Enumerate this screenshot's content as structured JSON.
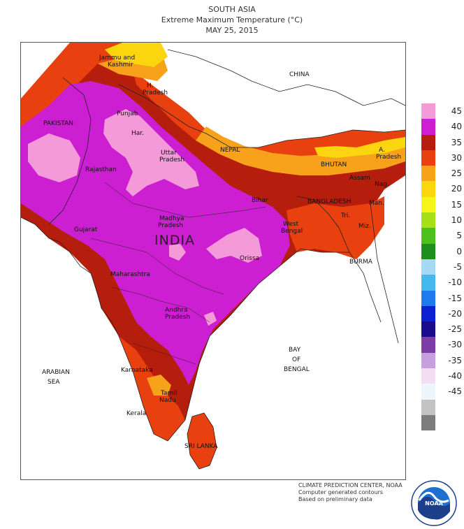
{
  "title": {
    "line1": "SOUTH ASIA",
    "line2": "Extreme Maximum Temperature (°C)",
    "line3": "MAY 25, 2015"
  },
  "map_labels": {
    "jammu": "Jammu and",
    "kashmir": "Kashmir",
    "china": "CHINA",
    "hp1": "H.",
    "hp2": "Pradesh",
    "pakistan": "PAKISTAN",
    "punjab": "Punjab",
    "haryana": "Har.",
    "up1": "Uttar",
    "up2": "Pradesh",
    "nepal": "NEPAL",
    "bhutan": "BHUTAN",
    "ap1": "A.",
    "ap2": "Pradesh",
    "assam": "Assam",
    "nagaland": "Nag.",
    "rajasthan": "Rajasthan",
    "bihar": "Bihar",
    "bangladesh": "BANGLADESH",
    "manipur": "Man.",
    "tripura": "Tri.",
    "mizoram": "Miz.",
    "mp1": "Madhya",
    "mp2": "Pradesh",
    "gujarat": "Gujarat",
    "wb1": "West",
    "wb2": "Bengal",
    "india": "INDIA",
    "orissa": "Orissa",
    "burma": "BURMA",
    "maharashtra": "Maharashtra",
    "andhra1": "Andhra",
    "andhra2": "Pradesh",
    "bay1": "BAY",
    "bay2": "OF",
    "bay3": "BENGAL",
    "arabian1": "ARABIAN",
    "arabian2": "SEA",
    "karnataka": "Karnataka",
    "tn1": "Tamil",
    "tn2": "Nadu",
    "kerala": "Kerala",
    "srilanka": "SRI LANKA"
  },
  "legend": [
    {
      "label": "45",
      "color": "#f59ad8"
    },
    {
      "label": "40",
      "color": "#cc1fd1"
    },
    {
      "label": "35",
      "color": "#b51d0c"
    },
    {
      "label": "30",
      "color": "#e8400f"
    },
    {
      "label": "25",
      "color": "#f7a21a"
    },
    {
      "label": "20",
      "color": "#fbd60f"
    },
    {
      "label": "15",
      "color": "#f5f519"
    },
    {
      "label": "10",
      "color": "#a6e01a"
    },
    {
      "label": "5",
      "color": "#4cc11c"
    },
    {
      "label": "0",
      "color": "#1d8f1d"
    },
    {
      "label": "-5",
      "color": "#a7d8f5"
    },
    {
      "label": "-10",
      "color": "#45b8ef"
    },
    {
      "label": "-15",
      "color": "#1d7bec"
    },
    {
      "label": "-20",
      "color": "#0c21d1"
    },
    {
      "label": "-25",
      "color": "#1a0c8c"
    },
    {
      "label": "-30",
      "color": "#7d3ca6"
    },
    {
      "label": "-35",
      "color": "#c79ee0"
    },
    {
      "label": "-40",
      "color": "#f3dff3"
    },
    {
      "label": "-45",
      "color": "#eef6fb"
    },
    {
      "label": "",
      "color": "#c3c3c3"
    },
    {
      "label": "",
      "color": "#7c7c7c"
    }
  ],
  "credits": {
    "line1": "CLIMATE PREDICTION CENTER, NOAA",
    "line2": "Computer generated contours",
    "line3": "Based on preliminary data"
  },
  "logo": {
    "text": "NOAA",
    "ring_text": "NATIONAL OCEANIC AND ATMOSPHERIC ADMINISTRATION · U.S. DEPARTMENT OF COMMERCE"
  }
}
